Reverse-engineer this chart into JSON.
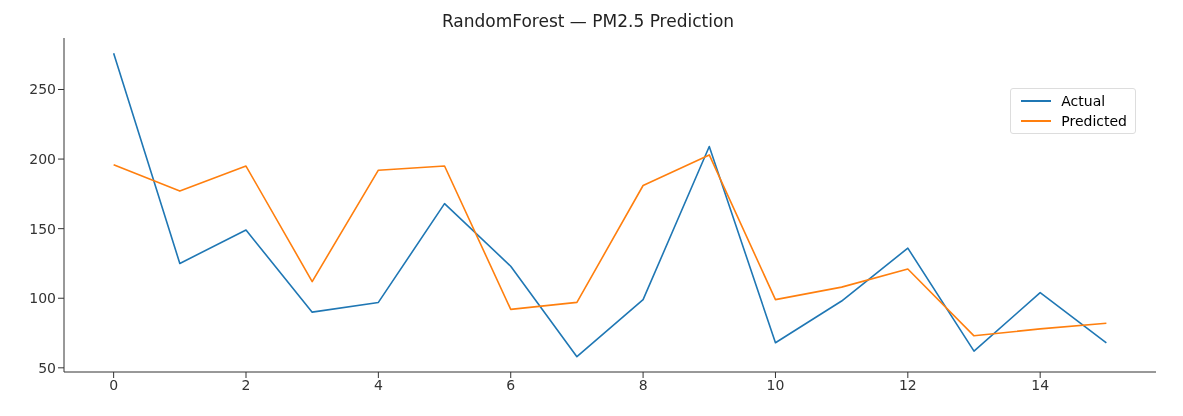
{
  "chart_data": {
    "type": "line",
    "title": "RandomForest — PM2.5 Prediction",
    "x": [
      0,
      1,
      2,
      3,
      4,
      5,
      6,
      7,
      8,
      9,
      10,
      11,
      12,
      13,
      14,
      15
    ],
    "series": [
      {
        "name": "Actual",
        "color": "#1f77b4",
        "values": [
          276,
          125,
          149,
          90,
          97,
          168,
          123,
          58,
          99,
          209,
          68,
          98,
          136,
          62,
          104,
          68
        ]
      },
      {
        "name": "Predicted",
        "color": "#ff7f0e",
        "values": [
          196,
          177,
          195,
          112,
          192,
          195,
          92,
          97,
          181,
          203,
          99,
          108,
          121,
          73,
          78,
          82
        ]
      }
    ],
    "xlim": [
      -0.75,
      15.75
    ],
    "xticks": [
      0,
      2,
      4,
      6,
      8,
      10,
      12,
      14
    ],
    "ylim": [
      47,
      287
    ],
    "yticks": [
      50,
      100,
      150,
      200,
      250
    ],
    "grid": false,
    "legend": "top right",
    "marker": "none",
    "line_style": "solid"
  }
}
